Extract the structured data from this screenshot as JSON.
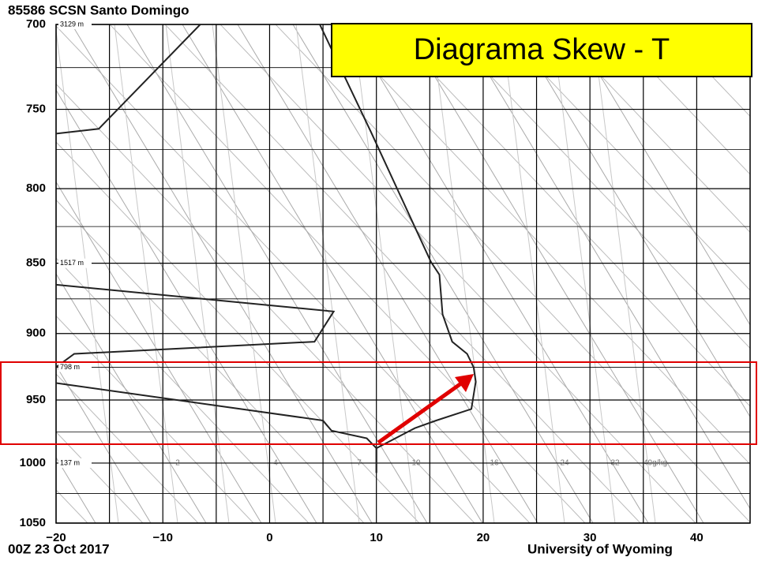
{
  "annotation": "Diagrama Skew - T",
  "chart_data": {
    "type": "skewt",
    "title": "85586 SCSN Santo Domingo",
    "subtitle": "00Z 23 Oct 2017",
    "source": "University of Wyoming",
    "ylog": true,
    "ylim": [
      700,
      1050
    ],
    "yticks": [
      700,
      750,
      800,
      850,
      900,
      950,
      1000,
      1050
    ],
    "yminor": [
      725,
      775,
      825,
      875,
      925,
      975,
      1025
    ],
    "xlim": [
      -20,
      45
    ],
    "xticks": [
      {
        "value": -20,
        "label": "−20"
      },
      {
        "value": -10,
        "label": "−10"
      },
      0,
      10,
      20,
      30,
      40
    ],
    "xgrid": [
      -15,
      -5,
      5,
      15,
      25,
      35
    ],
    "heights": [
      {
        "pressure": 700,
        "label": "3129 m"
      },
      {
        "pressure": 850,
        "label": "1517 m"
      },
      {
        "pressure": 925,
        "label": "798 m"
      },
      {
        "pressure": 1000,
        "label": "137 m"
      }
    ],
    "mixing_ratio_labels": [
      "2",
      "4",
      "7",
      "10",
      "16",
      "24",
      "32",
      "40g/kg"
    ],
    "series": [
      {
        "color": "#222222",
        "x": [
          10,
          10,
          13.6,
          15.6,
          18.9,
          19.3,
          19.1,
          18.5,
          17.1,
          16.2,
          15.9,
          15.1,
          9.5,
          4.7
        ],
        "values": [
          1008,
          988,
          972,
          966,
          957,
          936,
          925,
          915,
          906,
          886,
          858,
          849,
          764,
          700
        ]
      },
      {
        "color": "#222222",
        "x": [
          10,
          10,
          9.1,
          5.8,
          5,
          -20,
          null,
          -20,
          -18.3,
          4.2,
          6,
          -20,
          null,
          -20,
          -16,
          -6.5
        ],
        "values": [
          1008,
          988,
          980,
          974,
          966,
          937,
          null,
          925,
          915,
          906,
          884,
          865,
          null,
          765,
          762,
          700
        ]
      }
    ]
  }
}
